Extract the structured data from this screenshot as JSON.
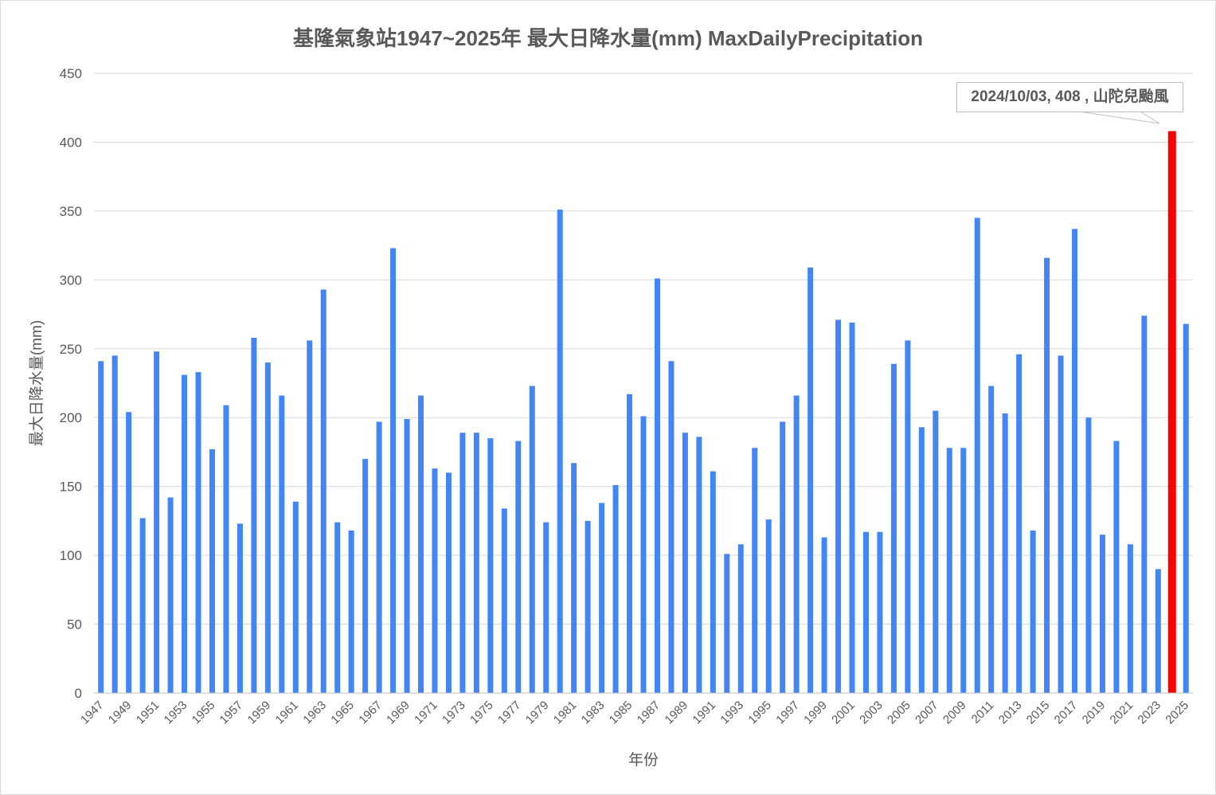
{
  "chart_data": {
    "type": "bar",
    "title": "基隆氣象站1947~2025年  最大日降水量(mm) MaxDailyPrecipitation",
    "xlabel": "年份",
    "ylabel": "最大日降水量(mm)",
    "ylim": [
      0,
      450
    ],
    "yticks": [
      0,
      50,
      100,
      150,
      200,
      250,
      300,
      350,
      400,
      450
    ],
    "grid": true,
    "bar_color": "#4285f4",
    "highlight_color": "#ff0000",
    "highlight_year": 2024,
    "annotation": "2024/10/03, 408 , 山陀兒颱風",
    "start_year": 1947,
    "categories": [
      "1947",
      "1948",
      "1949",
      "1950",
      "1951",
      "1952",
      "1953",
      "1954",
      "1955",
      "1956",
      "1957",
      "1958",
      "1959",
      "1960",
      "1961",
      "1962",
      "1963",
      "1964",
      "1965",
      "1966",
      "1967",
      "1968",
      "1969",
      "1970",
      "1971",
      "1972",
      "1973",
      "1974",
      "1975",
      "1976",
      "1977",
      "1978",
      "1979",
      "1980",
      "1981",
      "1982",
      "1983",
      "1984",
      "1985",
      "1986",
      "1987",
      "1988",
      "1989",
      "1990",
      "1991",
      "1992",
      "1993",
      "1994",
      "1995",
      "1996",
      "1997",
      "1998",
      "1999",
      "2000",
      "2001",
      "2002",
      "2003",
      "2004",
      "2005",
      "2006",
      "2007",
      "2008",
      "2009",
      "2010",
      "2011",
      "2012",
      "2013",
      "2014",
      "2015",
      "2016",
      "2017",
      "2018",
      "2019",
      "2020",
      "2021",
      "2022",
      "2023",
      "2024",
      "2025"
    ],
    "values": [
      241,
      245,
      204,
      127,
      248,
      142,
      231,
      233,
      177,
      209,
      123,
      258,
      240,
      216,
      139,
      256,
      293,
      124,
      118,
      170,
      197,
      323,
      199,
      216,
      163,
      160,
      189,
      189,
      185,
      134,
      183,
      223,
      124,
      351,
      167,
      125,
      138,
      151,
      217,
      201,
      301,
      241,
      189,
      186,
      161,
      101,
      108,
      178,
      126,
      197,
      216,
      309,
      113,
      271,
      269,
      117,
      117,
      239,
      256,
      193,
      205,
      178,
      178,
      345,
      223,
      203,
      246,
      118,
      316,
      245,
      337,
      200,
      115,
      183,
      108,
      274,
      90,
      408,
      268
    ]
  }
}
